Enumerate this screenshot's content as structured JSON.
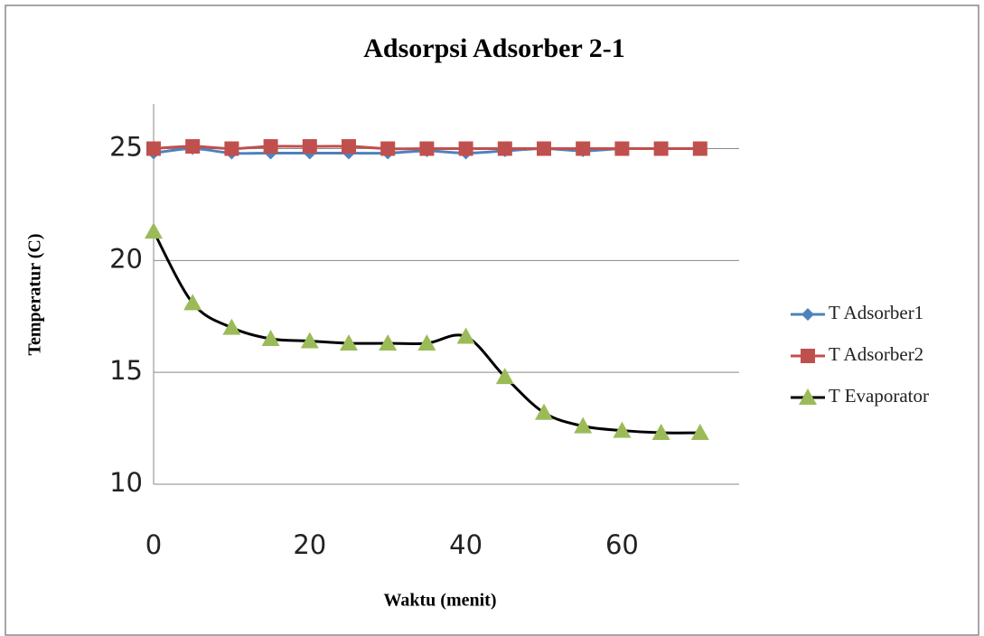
{
  "chart_data": {
    "type": "line",
    "title": "Adsorpsi Adsorber 2-1",
    "x_label": "Waktu (menit)",
    "y_label": "Temperatur (C)",
    "x": [
      0,
      5,
      10,
      15,
      20,
      25,
      30,
      35,
      40,
      45,
      50,
      55,
      60,
      65,
      70
    ],
    "series": [
      {
        "name": "T Adsorber1",
        "color": "#4f81bd",
        "line_color": "#4f81bd",
        "marker": "diamond",
        "values": [
          24.8,
          25.0,
          24.8,
          24.8,
          24.8,
          24.8,
          24.8,
          24.9,
          24.8,
          24.9,
          25.0,
          24.9,
          25.0,
          25.0,
          25.0
        ]
      },
      {
        "name": "T Adsorber2",
        "color": "#c0504d",
        "line_color": "#c0504d",
        "marker": "square",
        "values": [
          25.0,
          25.1,
          25.0,
          25.1,
          25.1,
          25.1,
          25.0,
          25.0,
          25.0,
          25.0,
          25.0,
          25.0,
          25.0,
          25.0,
          25.0
        ]
      },
      {
        "name": "T Evaporator",
        "color": "#9bbb59",
        "line_color": "#000000",
        "marker": "triangle",
        "values": [
          21.3,
          18.1,
          17.0,
          16.5,
          16.4,
          16.3,
          16.3,
          16.3,
          16.6,
          14.8,
          13.2,
          12.6,
          12.4,
          12.3,
          12.3
        ]
      }
    ],
    "xlim": [
      0,
      75
    ],
    "ylim": [
      10,
      27
    ],
    "xticks": [
      0,
      20,
      40,
      60
    ],
    "yticks": [
      10,
      15,
      20,
      25
    ],
    "grid": true,
    "smooth": true,
    "legend": "right"
  }
}
